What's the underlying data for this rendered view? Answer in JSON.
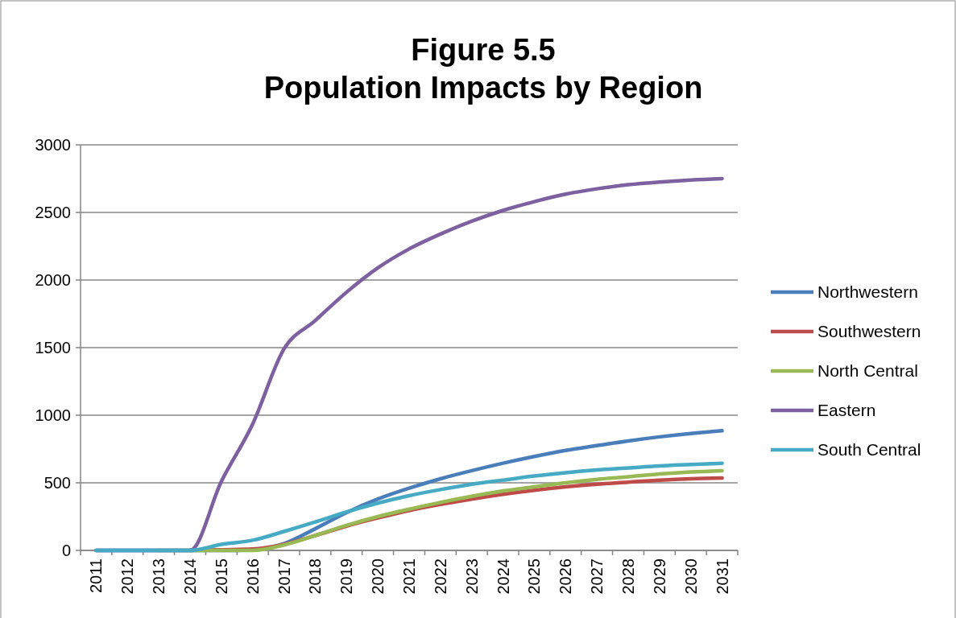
{
  "chart_data": {
    "type": "line",
    "title": "Figure 5.5\nPopulation Impacts by Region",
    "categories": [
      "2011",
      "2012",
      "2013",
      "2014",
      "2015",
      "2016",
      "2017",
      "2018",
      "2019",
      "2020",
      "2021",
      "2022",
      "2023",
      "2024",
      "2025",
      "2026",
      "2027",
      "2028",
      "2029",
      "2030",
      "2031"
    ],
    "ylim": [
      0,
      3000
    ],
    "yticks": [
      0,
      500,
      1000,
      1500,
      2000,
      2500,
      3000
    ],
    "grid": "y",
    "legend": "right",
    "line_style": "solid",
    "series": [
      {
        "name": "Northwestern",
        "color": "#4a7ebb",
        "values": [
          0,
          0,
          0,
          0,
          0,
          5,
          50,
          160,
          280,
          380,
          460,
          530,
          590,
          645,
          695,
          740,
          775,
          810,
          840,
          865,
          885
        ]
      },
      {
        "name": "Southwestern",
        "color": "#be4b48",
        "values": [
          null,
          null,
          null,
          0,
          5,
          10,
          45,
          110,
          180,
          240,
          295,
          340,
          380,
          415,
          445,
          470,
          490,
          505,
          520,
          530,
          535
        ]
      },
      {
        "name": "North Central",
        "color": "#98b954",
        "values": [
          null,
          null,
          0,
          0,
          0,
          0,
          40,
          110,
          185,
          250,
          305,
          355,
          400,
          440,
          470,
          500,
          525,
          545,
          565,
          580,
          590
        ]
      },
      {
        "name": "Eastern",
        "color": "#7d60a0",
        "values": [
          0,
          0,
          0,
          0,
          510,
          935,
          1490,
          1700,
          1910,
          2090,
          2230,
          2340,
          2435,
          2515,
          2580,
          2635,
          2675,
          2705,
          2725,
          2740,
          2750
        ]
      },
      {
        "name": "South Central",
        "color": "#46aac5",
        "values": [
          0,
          0,
          0,
          0,
          45,
          75,
          140,
          210,
          285,
          350,
          405,
          450,
          490,
          520,
          550,
          575,
          595,
          610,
          625,
          635,
          645
        ]
      }
    ]
  }
}
